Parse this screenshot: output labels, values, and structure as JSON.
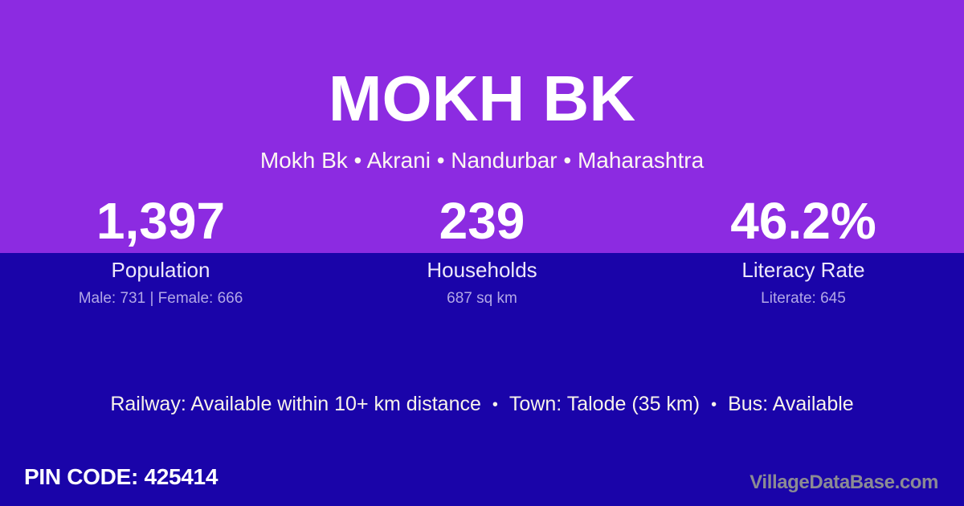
{
  "theme": {
    "top_background": "#8C2BE1",
    "bottom_background": "#1A04A9",
    "title_color": "#FFFFFF",
    "subtitle_color": "#FCF7F2",
    "stat_value_color": "#FFFFFF",
    "stat_label_color": "#EDE8FA",
    "stat_detail_color": "#B2A7E6",
    "amenities_color": "#F8F3EB",
    "pin_color": "#FFFFFF",
    "watermark_color": "#8B8B93"
  },
  "header": {
    "title": "MOKH BK",
    "breadcrumb": "Mokh Bk • Akrani • Nandurbar • Maharashtra"
  },
  "stats": [
    {
      "value": "1,397",
      "label": "Population",
      "detail": "Male: 731 | Female: 666"
    },
    {
      "value": "239",
      "label": "Households",
      "detail": "687 sq km"
    },
    {
      "value": "46.2%",
      "label": "Literacy Rate",
      "detail": "Literate: 645"
    }
  ],
  "amenities": {
    "railway": "Railway: Available within 10+ km distance",
    "town": "Town: Talode (35 km)",
    "bus": "Bus: Available",
    "separator": "•"
  },
  "footer": {
    "pin_code": "PIN CODE: 425414",
    "watermark": "VillageDataBase.com"
  }
}
